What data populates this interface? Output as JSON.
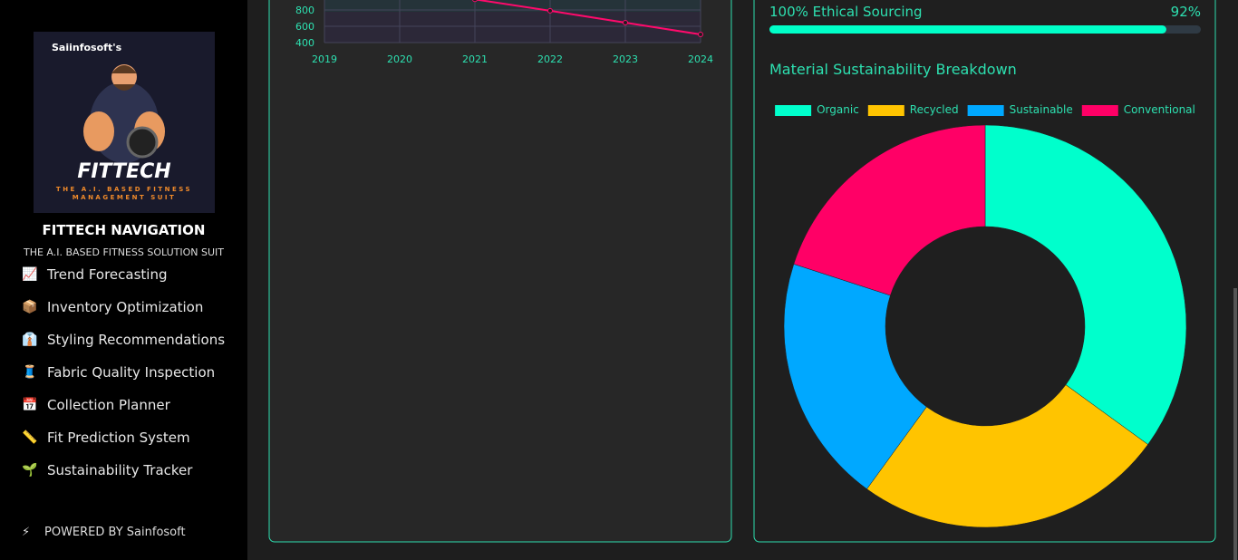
{
  "sidebar": {
    "logo": {
      "brand": "Saiinfosoft's",
      "name": "FITTECH",
      "tagline": "THE A.I. BASED FITNESS MANAGEMENT SUIT"
    },
    "title": "FITTECH NAVIGATION",
    "subtitle": "THE A.I. BASED FITNESS SOLUTION SUIT",
    "nav": [
      {
        "icon": "📈",
        "label": "Trend Forecasting"
      },
      {
        "icon": "📦",
        "label": "Inventory Optimization"
      },
      {
        "icon": "👔",
        "label": "Styling Recommendations"
      },
      {
        "icon": "🧵",
        "label": "Fabric Quality Inspection"
      },
      {
        "icon": "📅",
        "label": "Collection Planner"
      },
      {
        "icon": "📏",
        "label": "Fit Prediction System"
      },
      {
        "icon": "🌱",
        "label": "Sustainability Tracker"
      }
    ],
    "footer": {
      "icon": "⚡",
      "text": "POWERED BY Sainfosoft"
    }
  },
  "progress": {
    "label": "100% Ethical Sourcing",
    "value": 92,
    "value_label": "92%",
    "max": 100
  },
  "section_title": "Material Sustainability Breakdown",
  "chart_data": [
    {
      "type": "line",
      "categories": [
        "2019",
        "2020",
        "2021",
        "2022",
        "2023",
        "2024"
      ],
      "series": [
        {
          "name": null,
          "color": "#ff0a6c",
          "values": [
            null,
            null,
            930,
            790,
            645,
            500
          ]
        }
      ],
      "ylim": [
        400,
        1000
      ],
      "yticks": [
        400,
        600,
        800
      ],
      "grid": true
    },
    {
      "type": "doughnut",
      "categories": [
        "Organic",
        "Recycled",
        "Sustainable",
        "Conventional"
      ],
      "values": [
        35,
        25,
        20,
        20
      ],
      "colors": [
        "#00ffcc",
        "#ffc400",
        "#00a8ff",
        "#ff0066"
      ],
      "legend": "top"
    }
  ]
}
